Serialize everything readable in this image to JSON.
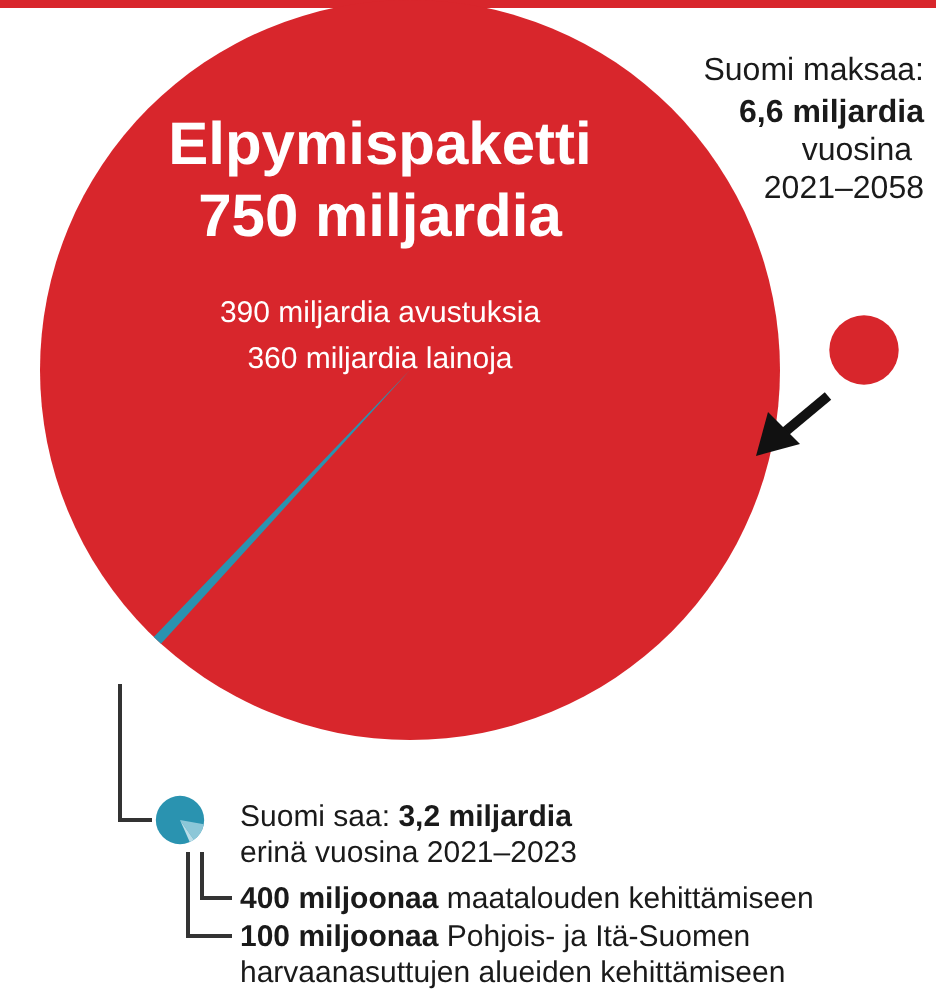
{
  "chart_data": {
    "type": "other",
    "values": [
      750,
      6.6,
      3.2,
      400,
      100
    ],
    "value_labels": [
      "750 miljardia",
      "6,6 miljardia",
      "3,2 miljardia",
      "400 miljoonaa",
      "100 miljoonaa"
    ],
    "colors": [
      "#d8262c",
      "#d8262c",
      "#2a93b0",
      "#8cc7d8",
      "#b9dde8"
    ],
    "annotations": [
      "Elpymispaketti",
      "390 miljardia avustuksia",
      "360 miljardia lainoja",
      "Suomi maksaa:",
      "vuosina",
      "2021–2058",
      "Suomi saa:",
      "erinä vuosina 2021–2023",
      "maatalouden kehittämiseen",
      "Pohjois- ja Itä-Suomen",
      "harvaanasuttujen alueiden kehittämiseen"
    ]
  }
}
